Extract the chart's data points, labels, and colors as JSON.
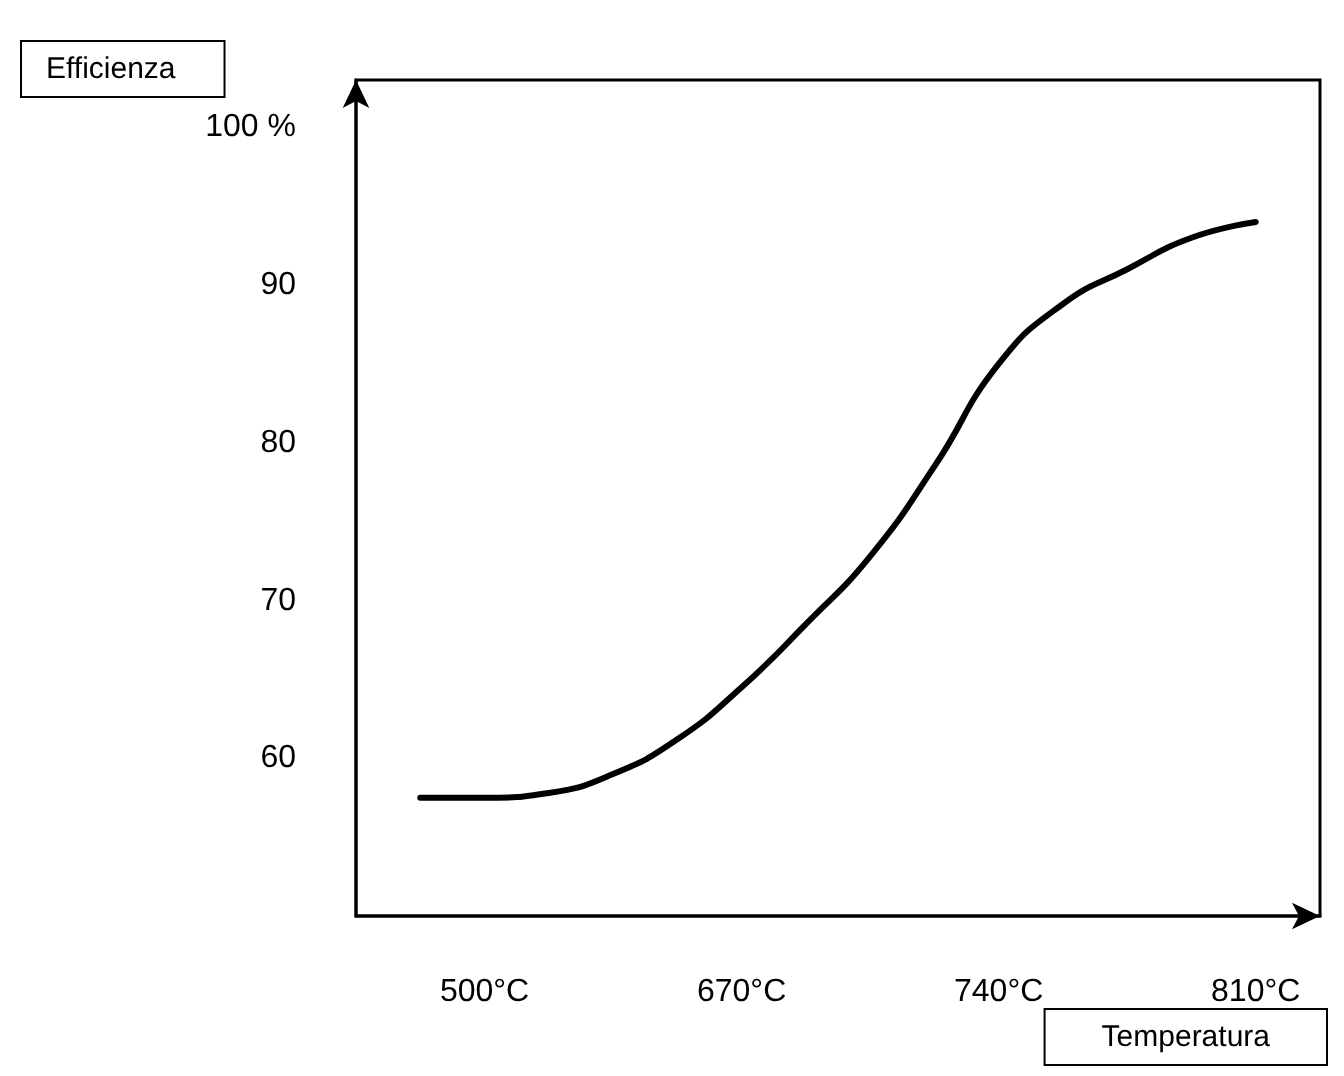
{
  "chart_data": {
    "type": "line",
    "xlabel": "Temperatura",
    "ylabel": "Efficienza",
    "categories": [
      null,
      null,
      "500°C",
      null,
      null,
      null,
      "670°C",
      null,
      null,
      null,
      "740°C",
      null,
      null,
      null,
      "810°C",
      null
    ],
    "series": [
      {
        "color": "#000000",
        "values": [
          null,
          57.5,
          57.5,
          57.8,
          59,
          61.2,
          64.5,
          68.5,
          72.8,
          78.5,
          85,
          88.8,
          91,
          93,
          94,
          null
        ]
      }
    ],
    "ylim": [
      50,
      103
    ],
    "yticks": [
      60,
      70,
      80,
      90,
      {
        "value": 100,
        "label": "100 %"
      }
    ],
    "grid": false,
    "marker": "none",
    "line_style": "solid"
  }
}
